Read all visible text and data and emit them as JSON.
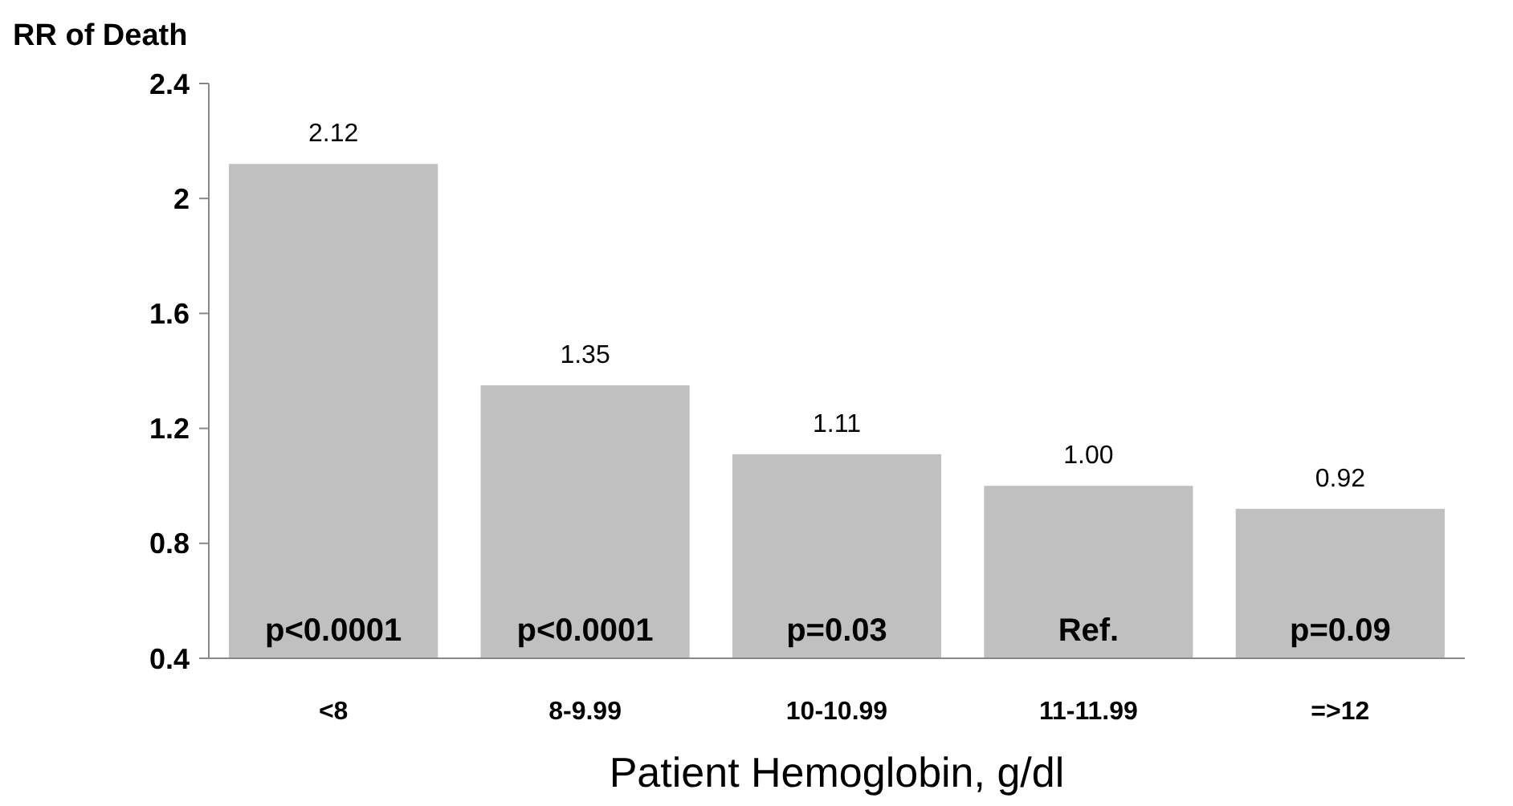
{
  "chart_data": {
    "type": "bar",
    "ylabel": "RR of Death",
    "xlabel": "Patient Hemoglobin, g/dl",
    "categories": [
      "<8",
      "8-9.99",
      "10-10.99",
      "11-11.99",
      "=>12"
    ],
    "values": [
      2.12,
      1.35,
      1.11,
      1.0,
      0.92
    ],
    "value_labels": [
      "2.12",
      "1.35",
      "1.11",
      "1.00",
      "0.92"
    ],
    "color": "#c0c0c0",
    "ylim": [
      0.4,
      2.4
    ],
    "yticks": [
      {
        "value": 0.4,
        "label": "0.4"
      },
      {
        "value": 0.8,
        "label": "0.8"
      },
      {
        "value": 1.2,
        "label": "1.2"
      },
      {
        "value": 1.6,
        "label": "1.6"
      },
      {
        "value": 2,
        "label": "2"
      },
      {
        "value": 2.4,
        "label": "2.4"
      }
    ],
    "grid": false,
    "annotations": [
      "p<0.0001",
      "p<0.0001",
      "p=0.03",
      "Ref.",
      "p=0.09"
    ]
  }
}
